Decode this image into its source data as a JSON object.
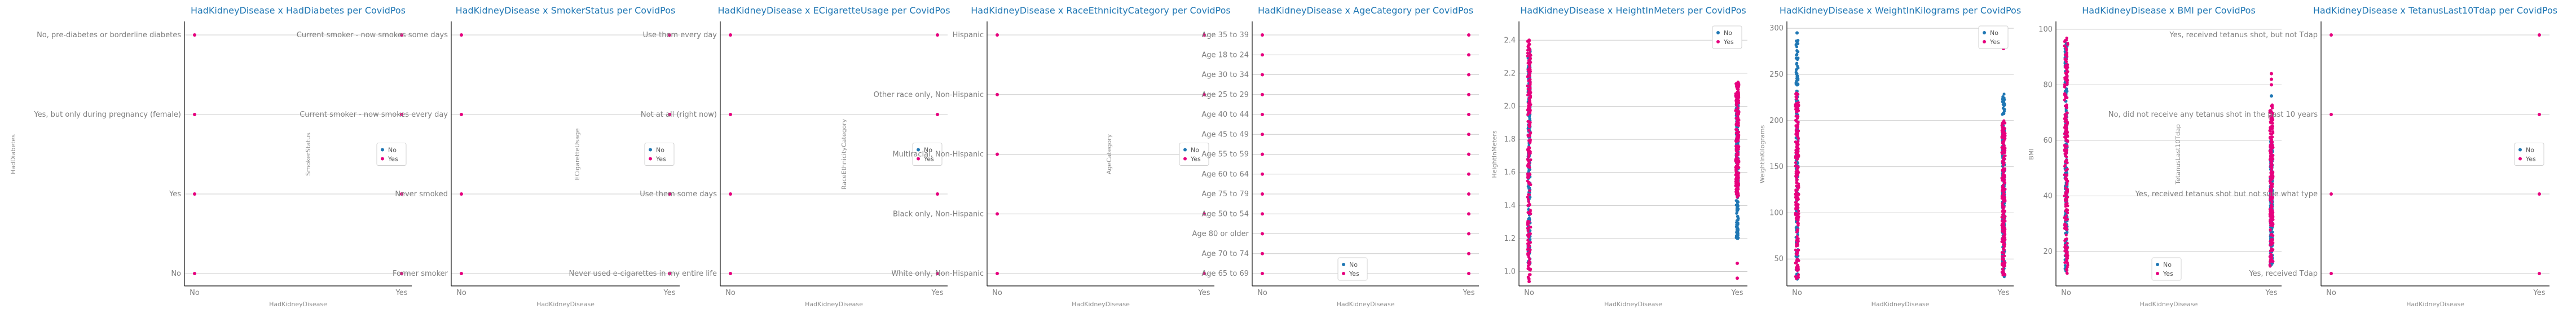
{
  "colors": {
    "No": "#1f77b4",
    "Yes": "#e6007e",
    "grid": "#cccccc",
    "title": "#1f77b4"
  },
  "charts": [
    {
      "type": "scatter",
      "title": "HadKidneyDisease x HadDiabetes per CovidPos",
      "xlabel": "HadKidneyDisease",
      "ylabel": "HadDiabetes",
      "x_categories": [
        "No",
        "Yes"
      ],
      "y_kind": "category",
      "y_categories": [
        "No",
        "Yes",
        "Yes, but only during pregnancy (female)",
        "No, pre-diabetes or borderline diabetes"
      ],
      "legend": {
        "entries": [
          "No",
          "Yes"
        ],
        "placement": "right"
      },
      "points": [
        {
          "x": "No",
          "y": "No",
          "s": "Yes"
        },
        {
          "x": "Yes",
          "y": "No",
          "s": "Yes"
        },
        {
          "x": "No",
          "y": "Yes",
          "s": "Yes"
        },
        {
          "x": "Yes",
          "y": "Yes",
          "s": "Yes"
        },
        {
          "x": "No",
          "y": "Yes, but only during pregnancy (female)",
          "s": "Yes"
        },
        {
          "x": "Yes",
          "y": "Yes, but only during pregnancy (female)",
          "s": "Yes"
        },
        {
          "x": "No",
          "y": "No, pre-diabetes or borderline diabetes",
          "s": "Yes"
        },
        {
          "x": "Yes",
          "y": "No, pre-diabetes or borderline diabetes",
          "s": "Yes"
        }
      ]
    },
    {
      "type": "scatter",
      "title": "HadKidneyDisease x SmokerStatus per CovidPos",
      "xlabel": "HadKidneyDisease",
      "ylabel": "SmokerStatus",
      "x_categories": [
        "No",
        "Yes"
      ],
      "y_kind": "category",
      "y_categories": [
        "Former smoker",
        "Never smoked",
        "Current smoker - now smokes every day",
        "Current smoker - now smokes some days"
      ],
      "legend": {
        "entries": [
          "No",
          "Yes"
        ],
        "placement": "right"
      },
      "points": [
        {
          "x": "No",
          "y": "Former smoker",
          "s": "Yes"
        },
        {
          "x": "Yes",
          "y": "Former smoker",
          "s": "Yes"
        },
        {
          "x": "No",
          "y": "Never smoked",
          "s": "Yes"
        },
        {
          "x": "Yes",
          "y": "Never smoked",
          "s": "Yes"
        },
        {
          "x": "No",
          "y": "Current smoker - now smokes every day",
          "s": "Yes"
        },
        {
          "x": "Yes",
          "y": "Current smoker - now smokes every day",
          "s": "Yes"
        },
        {
          "x": "No",
          "y": "Current smoker - now smokes some days",
          "s": "Yes"
        },
        {
          "x": "Yes",
          "y": "Current smoker - now smokes some days",
          "s": "Yes"
        }
      ]
    },
    {
      "type": "scatter",
      "title": "HadKidneyDisease x ECigaretteUsage per CovidPos",
      "xlabel": "HadKidneyDisease",
      "ylabel": "ECigaretteUsage",
      "x_categories": [
        "No",
        "Yes"
      ],
      "y_kind": "category",
      "y_categories": [
        "Never used e-cigarettes in my entire life",
        "Use them some days",
        "Not at all (right now)",
        "Use them every day"
      ],
      "legend": {
        "entries": [
          "No",
          "Yes"
        ],
        "placement": "right"
      },
      "points": [
        {
          "x": "No",
          "y": "Never used e-cigarettes in my entire life",
          "s": "Yes"
        },
        {
          "x": "Yes",
          "y": "Never used e-cigarettes in my entire life",
          "s": "Yes"
        },
        {
          "x": "No",
          "y": "Use them some days",
          "s": "Yes"
        },
        {
          "x": "Yes",
          "y": "Use them some days",
          "s": "Yes"
        },
        {
          "x": "No",
          "y": "Not at all (right now)",
          "s": "Yes"
        },
        {
          "x": "Yes",
          "y": "Not at all (right now)",
          "s": "Yes"
        },
        {
          "x": "No",
          "y": "Use them every day",
          "s": "Yes"
        },
        {
          "x": "Yes",
          "y": "Use them every day",
          "s": "Yes"
        }
      ]
    },
    {
      "type": "scatter",
      "title": "HadKidneyDisease x RaceEthnicityCategory per CovidPos",
      "xlabel": "HadKidneyDisease",
      "ylabel": "RaceEthnicityCategory",
      "x_categories": [
        "No",
        "Yes"
      ],
      "y_kind": "category",
      "y_categories": [
        "White only, Non-Hispanic",
        "Black only, Non-Hispanic",
        "Multiracial, Non-Hispanic",
        "Other race only, Non-Hispanic",
        "Hispanic"
      ],
      "legend": {
        "entries": [
          "No",
          "Yes"
        ],
        "placement": "right"
      },
      "points": [
        {
          "x": "No",
          "y": "White only, Non-Hispanic",
          "s": "Yes"
        },
        {
          "x": "Yes",
          "y": "White only, Non-Hispanic",
          "s": "Yes"
        },
        {
          "x": "No",
          "y": "Black only, Non-Hispanic",
          "s": "Yes"
        },
        {
          "x": "Yes",
          "y": "Black only, Non-Hispanic",
          "s": "Yes"
        },
        {
          "x": "No",
          "y": "Multiracial, Non-Hispanic",
          "s": "Yes"
        },
        {
          "x": "Yes",
          "y": "Multiracial, Non-Hispanic",
          "s": "Yes"
        },
        {
          "x": "No",
          "y": "Other race only, Non-Hispanic",
          "s": "Yes"
        },
        {
          "x": "Yes",
          "y": "Other race only, Non-Hispanic",
          "s": "Yes"
        },
        {
          "x": "No",
          "y": "Hispanic",
          "s": "Yes"
        },
        {
          "x": "Yes",
          "y": "Hispanic",
          "s": "Yes"
        }
      ]
    },
    {
      "type": "scatter",
      "title": "HadKidneyDisease x AgeCategory per CovidPos",
      "xlabel": "HadKidneyDisease",
      "ylabel": "AgeCategory",
      "x_categories": [
        "No",
        "Yes"
      ],
      "y_kind": "category",
      "y_categories": [
        "Age 65 to 69",
        "Age 70 to 74",
        "Age 80 or older",
        "Age 50 to 54",
        "Age 75 to 79",
        "Age 60 to 64",
        "Age 55 to 59",
        "Age 45 to 49",
        "Age 40 to 44",
        "Age 25 to 29",
        "Age 30 to 34",
        "Age 18 to 24",
        "Age 35 to 39"
      ],
      "legend": {
        "entries": [
          "No",
          "Yes"
        ],
        "placement": "bottom-right"
      },
      "points": [
        {
          "x": "No",
          "y": "Age 65 to 69",
          "s": "Yes"
        },
        {
          "x": "Yes",
          "y": "Age 65 to 69",
          "s": "Yes"
        },
        {
          "x": "No",
          "y": "Age 70 to 74",
          "s": "Yes"
        },
        {
          "x": "Yes",
          "y": "Age 70 to 74",
          "s": "Yes"
        },
        {
          "x": "No",
          "y": "Age 80 or older",
          "s": "Yes"
        },
        {
          "x": "Yes",
          "y": "Age 80 or older",
          "s": "Yes"
        },
        {
          "x": "No",
          "y": "Age 50 to 54",
          "s": "Yes"
        },
        {
          "x": "Yes",
          "y": "Age 50 to 54",
          "s": "Yes"
        },
        {
          "x": "No",
          "y": "Age 75 to 79",
          "s": "Yes"
        },
        {
          "x": "Yes",
          "y": "Age 75 to 79",
          "s": "Yes"
        },
        {
          "x": "No",
          "y": "Age 60 to 64",
          "s": "Yes"
        },
        {
          "x": "Yes",
          "y": "Age 60 to 64",
          "s": "Yes"
        },
        {
          "x": "No",
          "y": "Age 55 to 59",
          "s": "Yes"
        },
        {
          "x": "Yes",
          "y": "Age 55 to 59",
          "s": "Yes"
        },
        {
          "x": "No",
          "y": "Age 45 to 49",
          "s": "Yes"
        },
        {
          "x": "Yes",
          "y": "Age 45 to 49",
          "s": "Yes"
        },
        {
          "x": "No",
          "y": "Age 40 to 44",
          "s": "Yes"
        },
        {
          "x": "Yes",
          "y": "Age 40 to 44",
          "s": "Yes"
        },
        {
          "x": "No",
          "y": "Age 25 to 29",
          "s": "Yes"
        },
        {
          "x": "Yes",
          "y": "Age 25 to 29",
          "s": "Yes"
        },
        {
          "x": "No",
          "y": "Age 30 to 34",
          "s": "Yes"
        },
        {
          "x": "Yes",
          "y": "Age 30 to 34",
          "s": "Yes"
        },
        {
          "x": "No",
          "y": "Age 18 to 24",
          "s": "Yes"
        },
        {
          "x": "Yes",
          "y": "Age 18 to 24",
          "s": "Yes"
        },
        {
          "x": "No",
          "y": "Age 35 to 39",
          "s": "Yes"
        },
        {
          "x": "Yes",
          "y": "Age 35 to 39",
          "s": "Yes"
        }
      ]
    },
    {
      "type": "scatter",
      "title": "HadKidneyDisease x HeightInMeters per CovidPos",
      "xlabel": "HadKidneyDisease",
      "ylabel": "HeightInMeters",
      "x_categories": [
        "No",
        "Yes"
      ],
      "y_kind": "numeric",
      "ylim": [
        0.92,
        2.5
      ],
      "yticks": [
        1.0,
        1.2,
        1.4,
        1.6,
        1.8,
        2.0,
        2.2,
        2.4
      ],
      "legend": {
        "entries": [
          "No",
          "Yes"
        ],
        "placement": "top-right"
      },
      "distribution": [
        {
          "x": "No",
          "s": "No",
          "range": [
            1.05,
            2.35
          ]
        },
        {
          "x": "No",
          "s": "Yes",
          "range": [
            0.95,
            2.4
          ]
        },
        {
          "x": "Yes",
          "s": "No",
          "range": [
            1.2,
            2.05
          ]
        },
        {
          "x": "Yes",
          "s": "Yes",
          "range": [
            1.45,
            2.15
          ]
        }
      ],
      "points": [
        {
          "x": "Yes",
          "y": 1.05,
          "s": "Yes"
        },
        {
          "x": "Yes",
          "y": 0.96,
          "s": "Yes"
        },
        {
          "x": "No",
          "y": 2.4,
          "s": "Yes"
        },
        {
          "x": "No",
          "y": 0.94,
          "s": "Yes"
        }
      ]
    },
    {
      "type": "scatter",
      "title": "HadKidneyDisease x WeightInKilograms per CovidPos",
      "xlabel": "HadKidneyDisease",
      "ylabel": "WeightInKilograms",
      "x_categories": [
        "No",
        "Yes"
      ],
      "y_kind": "numeric",
      "ylim": [
        22,
        305
      ],
      "yticks": [
        50,
        100,
        150,
        200,
        250,
        300
      ],
      "legend": {
        "entries": [
          "No",
          "Yes"
        ],
        "placement": "top-right"
      },
      "distribution": [
        {
          "x": "No",
          "s": "No",
          "range": [
            28,
            290
          ]
        },
        {
          "x": "No",
          "s": "Yes",
          "range": [
            28,
            230
          ]
        },
        {
          "x": "Yes",
          "s": "No",
          "range": [
            30,
            230
          ]
        },
        {
          "x": "Yes",
          "s": "Yes",
          "range": [
            30,
            200
          ]
        }
      ],
      "points": [
        {
          "x": "Yes",
          "y": 278,
          "s": "Yes"
        },
        {
          "x": "No",
          "y": 295,
          "s": "No"
        }
      ]
    },
    {
      "type": "scatter",
      "title": "HadKidneyDisease x BMI per CovidPos",
      "xlabel": "HadKidneyDisease",
      "ylabel": "BMI",
      "x_categories": [
        "No",
        "Yes"
      ],
      "y_kind": "numeric",
      "ylim": [
        8,
        102
      ],
      "yticks": [
        20,
        40,
        60,
        80,
        100
      ],
      "legend": {
        "entries": [
          "No",
          "Yes"
        ],
        "placement": "bottom-center"
      },
      "distribution": [
        {
          "x": "No",
          "s": "No",
          "range": [
            13,
            95
          ]
        },
        {
          "x": "No",
          "s": "Yes",
          "range": [
            12,
            97
          ]
        },
        {
          "x": "Yes",
          "s": "No",
          "range": [
            15,
            60
          ]
        },
        {
          "x": "Yes",
          "s": "Yes",
          "range": [
            14,
            73
          ]
        }
      ],
      "points": [
        {
          "x": "Yes",
          "y": 80,
          "s": "Yes"
        },
        {
          "x": "Yes",
          "y": 82,
          "s": "Yes"
        },
        {
          "x": "Yes",
          "y": 84,
          "s": "Yes"
        },
        {
          "x": "Yes",
          "y": 76,
          "s": "No"
        }
      ]
    },
    {
      "type": "scatter",
      "title": "HadKidneyDisease x TetanusLast10Tdap per CovidPos",
      "xlabel": "HadKidneyDisease",
      "ylabel": "TetanusLast10Tdap",
      "x_categories": [
        "No",
        "Yes"
      ],
      "y_kind": "category",
      "y_categories": [
        "Yes, received Tdap",
        "Yes, received tetanus shot but not sure what type",
        "No, did not receive any tetanus shot in the past 10 years",
        "Yes, received tetanus shot, but not Tdap"
      ],
      "legend": {
        "entries": [
          "No",
          "Yes"
        ],
        "placement": "right"
      },
      "points": [
        {
          "x": "No",
          "y": "Yes, received Tdap",
          "s": "Yes"
        },
        {
          "x": "Yes",
          "y": "Yes, received Tdap",
          "s": "Yes"
        },
        {
          "x": "No",
          "y": "Yes, received tetanus shot but not sure what type",
          "s": "Yes"
        },
        {
          "x": "Yes",
          "y": "Yes, received tetanus shot but not sure what type",
          "s": "Yes"
        },
        {
          "x": "No",
          "y": "No, did not receive any tetanus shot in the past 10 years",
          "s": "Yes"
        },
        {
          "x": "Yes",
          "y": "No, did not receive any tetanus shot in the past 10 years",
          "s": "Yes"
        },
        {
          "x": "No",
          "y": "Yes, received tetanus shot, but not Tdap",
          "s": "Yes"
        },
        {
          "x": "Yes",
          "y": "Yes, received tetanus shot, but not Tdap",
          "s": "Yes"
        }
      ]
    }
  ],
  "chart_data": [
    {
      "type": "scatter",
      "title": "HadKidneyDisease x HadDiabetes per CovidPos",
      "xlabel": "HadKidneyDisease",
      "ylabel": "HadDiabetes",
      "categories": [
        "No",
        "Yes"
      ],
      "y_categories": [
        "No",
        "Yes",
        "Yes, but only during pregnancy (female)",
        "No, pre-diabetes or borderline diabetes"
      ],
      "series": [
        {
          "name": "No"
        },
        {
          "name": "Yes"
        }
      ]
    },
    {
      "type": "scatter",
      "title": "HadKidneyDisease x SmokerStatus per CovidPos",
      "xlabel": "HadKidneyDisease",
      "ylabel": "SmokerStatus",
      "categories": [
        "No",
        "Yes"
      ],
      "y_categories": [
        "Former smoker",
        "Never smoked",
        "Current smoker - now smokes every day",
        "Current smoker - now smokes some days"
      ],
      "series": [
        {
          "name": "No"
        },
        {
          "name": "Yes"
        }
      ]
    },
    {
      "type": "scatter",
      "title": "HadKidneyDisease x ECigaretteUsage per CovidPos",
      "xlabel": "HadKidneyDisease",
      "ylabel": "ECigaretteUsage",
      "categories": [
        "No",
        "Yes"
      ],
      "y_categories": [
        "Never used e-cigarettes in my entire life",
        "Use them some days",
        "Not at all (right now)",
        "Use them every day"
      ],
      "series": [
        {
          "name": "No"
        },
        {
          "name": "Yes"
        }
      ]
    },
    {
      "type": "scatter",
      "title": "HadKidneyDisease x RaceEthnicityCategory per CovidPos",
      "xlabel": "HadKidneyDisease",
      "ylabel": "RaceEthnicityCategory",
      "categories": [
        "No",
        "Yes"
      ],
      "y_categories": [
        "White only, Non-Hispanic",
        "Black only, Non-Hispanic",
        "Multiracial, Non-Hispanic",
        "Other race only, Non-Hispanic",
        "Hispanic"
      ],
      "series": [
        {
          "name": "No"
        },
        {
          "name": "Yes"
        }
      ]
    },
    {
      "type": "scatter",
      "title": "HadKidneyDisease x AgeCategory per CovidPos",
      "xlabel": "HadKidneyDisease",
      "ylabel": "AgeCategory",
      "categories": [
        "No",
        "Yes"
      ],
      "y_categories": [
        "Age 65 to 69",
        "Age 70 to 74",
        "Age 80 or older",
        "Age 50 to 54",
        "Age 75 to 79",
        "Age 60 to 64",
        "Age 55 to 59",
        "Age 45 to 49",
        "Age 40 to 44",
        "Age 25 to 29",
        "Age 30 to 34",
        "Age 18 to 24",
        "Age 35 to 39"
      ],
      "series": [
        {
          "name": "No"
        },
        {
          "name": "Yes"
        }
      ]
    },
    {
      "type": "scatter",
      "title": "HadKidneyDisease x HeightInMeters per CovidPos",
      "xlabel": "HadKidneyDisease",
      "ylabel": "HeightInMeters",
      "categories": [
        "No",
        "Yes"
      ],
      "ylim": [
        0.92,
        2.5
      ],
      "series": [
        {
          "name": "No"
        },
        {
          "name": "Yes"
        }
      ]
    },
    {
      "type": "scatter",
      "title": "HadKidneyDisease x WeightInKilograms per CovidPos",
      "xlabel": "HadKidneyDisease",
      "ylabel": "WeightInKilograms",
      "categories": [
        "No",
        "Yes"
      ],
      "ylim": [
        22,
        305
      ],
      "series": [
        {
          "name": "No"
        },
        {
          "name": "Yes"
        }
      ]
    },
    {
      "type": "scatter",
      "title": "HadKidneyDisease x BMI per CovidPos",
      "xlabel": "HadKidneyDisease",
      "ylabel": "BMI",
      "categories": [
        "No",
        "Yes"
      ],
      "ylim": [
        8,
        102
      ],
      "series": [
        {
          "name": "No"
        },
        {
          "name": "Yes"
        }
      ]
    },
    {
      "type": "scatter",
      "title": "HadKidneyDisease x TetanusLast10Tdap per CovidPos",
      "xlabel": "HadKidneyDisease",
      "ylabel": "TetanusLast10Tdap",
      "categories": [
        "No",
        "Yes"
      ],
      "y_categories": [
        "Yes, received Tdap",
        "Yes, received tetanus shot but not sure what type",
        "No, did not receive any tetanus shot in the past 10 years",
        "Yes, received tetanus shot, but not Tdap"
      ],
      "series": [
        {
          "name": "No"
        },
        {
          "name": "Yes"
        }
      ]
    }
  ]
}
